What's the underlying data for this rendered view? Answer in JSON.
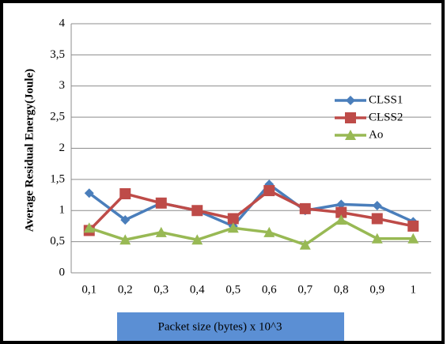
{
  "chart_data": {
    "type": "line",
    "x_label": "Packet size (bytes) x 10^3",
    "y_label": "Average Residual Energy(Joule)",
    "categories": [
      "0,1",
      "0,2",
      "0,3",
      "0,4",
      "0,5",
      "0,6",
      "0,7",
      "0,8",
      "0,9",
      "1"
    ],
    "series": [
      {
        "name": "CLSS1",
        "color": "#4a7ebb",
        "marker": "diamond",
        "values": [
          1.28,
          0.85,
          1.12,
          1.0,
          0.75,
          1.42,
          1.0,
          1.1,
          1.08,
          0.82
        ]
      },
      {
        "name": "CLSS2",
        "color": "#be4b48",
        "marker": "square",
        "values": [
          0.68,
          1.27,
          1.12,
          1.0,
          0.87,
          1.32,
          1.03,
          0.97,
          0.87,
          0.75
        ]
      },
      {
        "name": "Ao",
        "color": "#98b954",
        "marker": "triangle",
        "values": [
          0.72,
          0.53,
          0.65,
          0.53,
          0.72,
          0.65,
          0.45,
          0.85,
          0.55,
          0.55
        ]
      }
    ],
    "ylim": [
      0,
      4
    ],
    "yticks": [
      0,
      {
        "value": 0.5,
        "label": "0,5"
      },
      1,
      {
        "value": 1.5,
        "label": "1,5"
      },
      2,
      {
        "value": 2.5,
        "label": "2,5"
      },
      3,
      {
        "value": 3.5,
        "label": "3,5"
      },
      4
    ],
    "grid": true,
    "legend": "right"
  }
}
